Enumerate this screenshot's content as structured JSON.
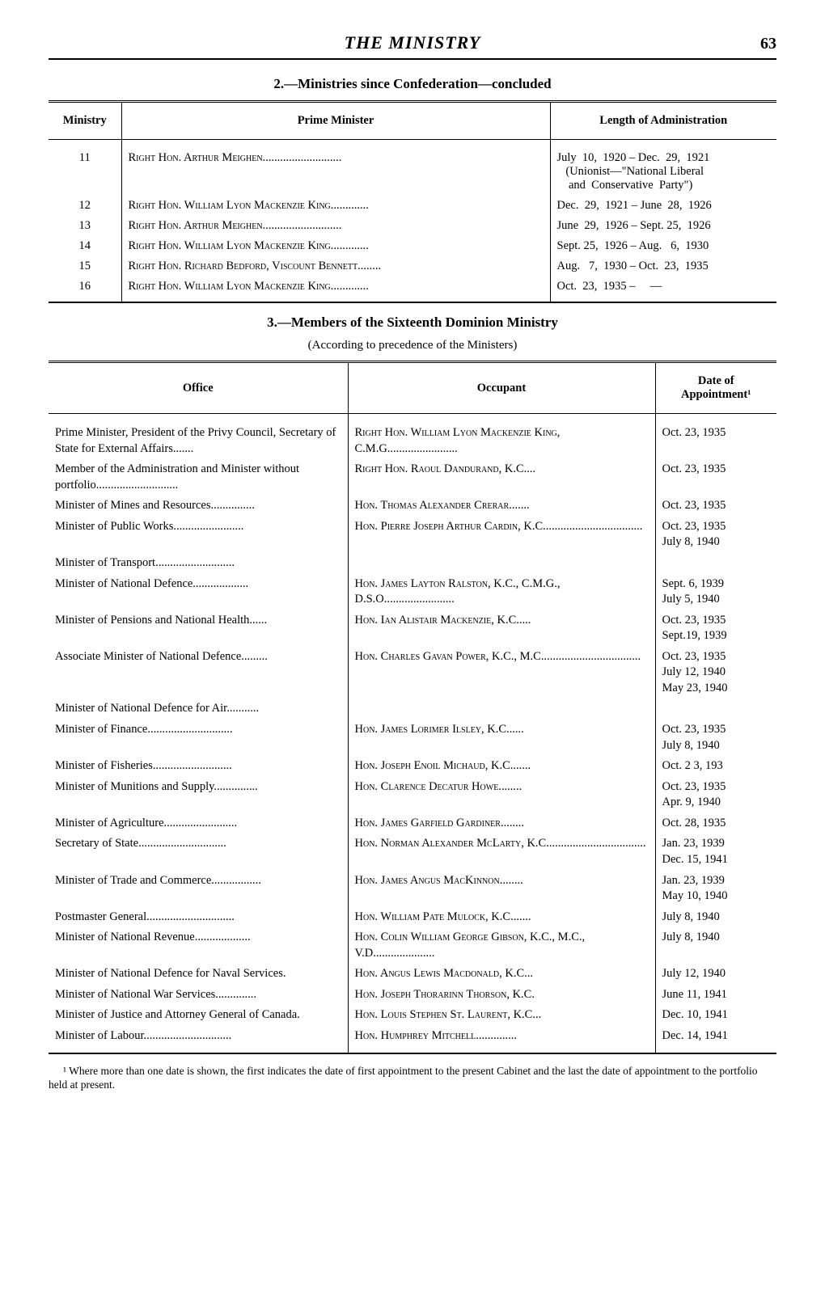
{
  "header": {
    "title": "THE MINISTRY",
    "page_number": "63"
  },
  "section2": {
    "title": "2.—Ministries since Confederation—concluded",
    "columns": [
      "Ministry",
      "Prime Minister",
      "Length of Administration"
    ],
    "rows": [
      {
        "num": "11",
        "pm": "Right Hon. Arthur Meighen...........................",
        "len": "July  10,  1920 – Dec.  29,  1921\n   (Unionist—\"National Liberal\n    and  Conservative  Party\")"
      },
      {
        "num": "12",
        "pm": "Right Hon. William Lyon Mackenzie King.............",
        "len": "Dec.  29,  1921 – June  28,  1926"
      },
      {
        "num": "13",
        "pm": "Right Hon. Arthur Meighen...........................",
        "len": "June  29,  1926 – Sept. 25,  1926"
      },
      {
        "num": "14",
        "pm": "Right Hon. William Lyon Mackenzie King.............",
        "len": "Sept. 25,  1926 – Aug.   6,  1930"
      },
      {
        "num": "15",
        "pm": "Right Hon. Richard Bedford, Viscount Bennett........",
        "len": "Aug.   7,  1930 – Oct.  23,  1935"
      },
      {
        "num": "16",
        "pm": "Right Hon. William Lyon Mackenzie King.............",
        "len": "Oct.  23,  1935 –     —"
      }
    ]
  },
  "section3": {
    "title": "3.—Members of the Sixteenth Dominion Ministry",
    "subtitle": "(According to precedence of the Ministers)",
    "columns": [
      "Office",
      "Occupant",
      "Date of Appointment¹"
    ],
    "rows": [
      {
        "office": "Prime Minister, President of the Privy Council, Secretary of State for External Affairs.......",
        "occupant": "Right Hon. William Lyon Mackenzie King, C.M.G........................",
        "date": "Oct. 23,  1935"
      },
      {
        "office": "Member of the Administration and Minister without portfolio............................",
        "occupant": "Right Hon. Raoul Dandurand, K.C....",
        "date": "Oct. 23,  1935"
      },
      {
        "office": "Minister of Mines and Resources...............",
        "occupant": "Hon. Thomas Alexander Crerar.......",
        "date": "Oct. 23,  1935"
      },
      {
        "office": "Minister of Public Works........................",
        "occupant": "Hon. Pierre Joseph Arthur Cardin, K.C..................................",
        "date": "Oct. 23,  1935\nJuly  8,  1940"
      },
      {
        "office": "Minister of Transport...........................",
        "occupant": "",
        "date": ""
      },
      {
        "office": "Minister of National Defence...................",
        "occupant": "Hon. James Layton Ralston, K.C., C.M.G., D.S.O........................",
        "date": "Sept. 6,  1939\nJuly  5,  1940"
      },
      {
        "office": "Minister of Pensions and National Health......",
        "occupant": "Hon. Ian Alistair Mackenzie, K.C.....",
        "date": "Oct. 23,  1935\nSept.19,  1939"
      },
      {
        "office": "Associate Minister of National Defence.........",
        "occupant": "Hon. Charles Gavan Power, K.C., M.C..................................",
        "date": "Oct. 23,  1935\nJuly 12,  1940\nMay 23,  1940"
      },
      {
        "office": "Minister of National Defence for Air...........",
        "occupant": "",
        "date": ""
      },
      {
        "office": "Minister of Finance.............................",
        "occupant": "Hon. James Lorimer Ilsley, K.C......",
        "date": "Oct. 23,  1935\nJuly  8,  1940"
      },
      {
        "office": "Minister of Fisheries...........................",
        "occupant": "Hon. Joseph Enoil Michaud, K.C.......",
        "date": "Oct. 2 3,  193"
      },
      {
        "office": "Minister of Munitions and Supply...............",
        "occupant": "Hon. Clarence Decatur Howe........",
        "date": "Oct. 23,  1935\nApr.  9,  1940"
      },
      {
        "office": "Minister of Agriculture.........................",
        "occupant": "Hon. James Garfield Gardiner........",
        "date": "Oct. 28,  1935"
      },
      {
        "office": "Secretary of State..............................",
        "occupant": "Hon. Norman Alexander McLarty, K.C..................................",
        "date": "Jan.  23,  1939\nDec. 15,  1941"
      },
      {
        "office": "Minister of Trade and Commerce.................",
        "occupant": "Hon. James Angus MacKinnon........",
        "date": "Jan.  23,  1939\nMay 10,  1940"
      },
      {
        "office": "Postmaster General..............................",
        "occupant": "Hon. William Pate Mulock, K.C.......",
        "date": "July   8,  1940"
      },
      {
        "office": "Minister of National Revenue...................",
        "occupant": "Hon. Colin William George Gibson, K.C., M.C., V.D.....................",
        "date": "July   8,  1940"
      },
      {
        "office": "Minister of National Defence for Naval Services.",
        "occupant": "Hon. Angus Lewis Macdonald, K.C...",
        "date": "July 12,  1940"
      },
      {
        "office": "Minister of National War Services..............",
        "occupant": "Hon. Joseph Thorarinn Thorson, K.C.",
        "date": "June 11,   1941"
      },
      {
        "office": "Minister of Justice and Attorney General of Canada.",
        "occupant": "Hon. Louis Stephen St. Laurent, K.C...",
        "date": "Dec. 10,  1941"
      },
      {
        "office": "Minister of Labour..............................",
        "occupant": "Hon. Humphrey Mitchell..............",
        "date": "Dec. 14,  1941"
      }
    ]
  },
  "footnote": "¹ Where more than one date is shown, the first indicates the date of first appointment to the present Cabinet and the last the date of appointment to the portfolio held at present."
}
